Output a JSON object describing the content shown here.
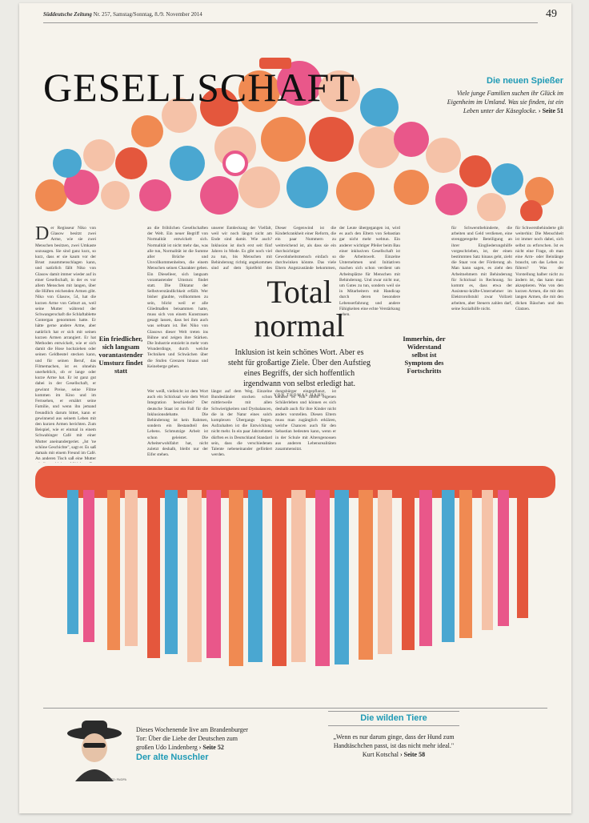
{
  "masthead": {
    "paper_name": "Süddeutsche Zeitung",
    "issue": "Nr. 257, Samstag/Sonntag, 8./9. November 2014",
    "page_number": "49"
  },
  "section_title": "GESELLSCHAFT",
  "teaser_top": {
    "title": "Die neuen Spießer",
    "text": "Viele junge Familien suchen ihr Glück im Eigenheim im Umland. Was sie finden, ist ein Leben unter der Käseglocke.",
    "ref": "Seite 51"
  },
  "article": {
    "headline": "Total normal",
    "deck": "Inklusion ist kein schönes Wort. Aber es steht für großartige Ziele. Über den Aufstieg eines Begriffs, der sich hoffentlich irgendwann von selbst erledigt hat.",
    "byline": "VON THOMAS HAHN",
    "dropcap": "D",
    "col1": "er Regisseur Niko von Glasow besitzt zwei Arme, wie sie zwei Menschen besitzen, zwei Umkaste sozusagen. Sie sind ganz kurz, so kurz, dass er sie kaum vor der Brust zusammenschlagen kann, und natürlich fällt Niko von Glasow damit immer wieder auf in einer Gesellschaft, in der es vor allem Menschen mit langen, über die Hüften reichenden Armen gibt. Niko von Glasow, 54, hat die kurzen Arme von Geburt an, weil seine Mutter während der Schwangerschaft die Schlaftablette Contergan genommen hatte. Er hätte gerne andere Arme, aber natürlich hat er sich mit seinen kurzen Armen arrangiert. Er hat Methoden entwickelt, wie er sich damit die Hose hochziehen oder seinen Geldbeutel stecken kann, und für seinen Beruf, das Filmemachen, ist es ohnehin unerheblich, ob er lange oder kurze Arme hat. Er ist ganz gut dabei in der Gesellschaft, er gewinnt Preise, seine Filme kommen im Kino und im Fernsehen, er ernährt seine Familie, und wenn ihn jemand freundlich darum bittet, kann er gewinnend aus seinem Leben mit den kurzen Armen berichten. Zum Beispiel, wie er einmal in einem Schwabinger Café mit einer Mutter aneinandergeriet. „Ist 'ne schöne Geschichte\", sagt er. Es saß damals mit einem Freund im Café. An anderen Tisch saß eine Mutter mit ihrem kleinen Mädchen. Das Mädchen stand auf, es ging im Lokal herum. Es blieb vor Niko von Glasow stehen, betrachtete seine Arme und sagte mit einer lauten, fast kreischenden Stimme: „Warum hast du denn so kleine Arme?\"",
    "col2": "an die fröhlichen Gesellschaften der Welt. Ein neuer Begriff von Normalität entwickelt sich. Normalität ist nicht mehr das, was alle tun, Normalität ist die Summe aller Brüche und Unvollkommenheiten, die einem Menschen seinen Charakter geben. Ein Dieselleer, sich langsam vorantastender Umsturz findet statt. Die Diktatur der Selbstverständlichkeit erfällt. Wer bisher glaubte, vollkommen zu sein, blickt weil er alle Gliedmaßen beisammen hatte, muss sich von einem Kunstrasen gesagt lassen, dass bei ihm auch was seltsam ist. Bei Niko von Glasows dieser Welt treten ins Bühne und zeigen ihre Stärken. Die Industrie entzieht in mehr vom Wunderdinge, durch welche Techniken und Schwächen über die Stufen Grenzen hinaus und Keineberge gehen.",
    "col3": "unserer Entdeckung der Vielfalt, weil wir noch längst nicht am Ende sind damit. Wie auch? Inklusion ist doch erst seit fünf Jahren in Mode. Es gibt noch viel zu tun, bis Menschen mit Behinderung richtig angekommen sind auf dem Spielfeld des gesellschaftlichen Lebens. Wenn man den öffentlichen Debatten glauben darf, sind dabei die Schulen die größten Baustellen. In der Tat ist es ein ziemlicher Akt, das ordentlich gegliederte deutsche Schulsystem nach und nach auseinanderzubauen und so wieder zusammenzusetzen, dass neue Chancen für alle entstehen.",
    "col4": "Dieser Gegenwind ist die Kinderkrankheit einer Reform, die ein paar Nummern zu weitreichend ist, als dass sie ein durchsichtiger Gewohnheitsmensch einfach so durchwinken könnte. Das viele Eltern Angstzustände bekommen, wenn sie hören, dass ihr lähigbereicherter, diesbemerktes und Mandolinen-Unterricht groß geworden Sebastian plötzlich in die Klasse mit einem Autisten gehen soll, ist zwar nicht schön. Zumal sie die Debatte viel zu emotional führen.",
    "col5": "der Leute übergegangen ist, wird es auch den Eltern von Sebastian gar nicht mehr wehtun. Ein anderer wichtiger Pfeiler beim Bau einer inklusiven Gesellschaft ist die Arbeitswelt. Einzelne Unternehmen und Initiativen machen sich schon verdient um Arbeitsplätze für Menschen mit Behinderung. Und zwar nicht nur, um Gutes zu tun, sondern weil sie in Mitarbeitern mit Handicap durch deren besondere Lebenserfahrung und andere Fähigkeiten eine echte Verstärkung sehen.",
    "col6": "für Schwerstbehinderte, die arbeiten und Geld verdienen, eine strenggeregelte Beteiligung an ihrer Eingliederungshilfe vorgeschrieben, ist, der einen bestimmten Satz hinaus geht, zieht die Staat von der Förderung ab. Man kann sagen, es zieht den Arbeitnehmern mit Behinderung für Schicksal in Rechnung. So kommt es, dass etwa der Assistenz-kräfte-Unternehmer im Elektrorollstuhl zwar Vollzeit arbeiten, aber Steuern zahlen darf, seine Sozialhilfe nicht.",
    "pull1": "Ein friedlicher, sich langsam vorantastender Umsturz findet statt",
    "pull2": "Immerhin, der Widerstand selbst ist Symptom des Fortschritts",
    "col7": "längst auf dem Weg. Einzelne Bundesländer stocken schon mittlerweile mit allen Schwierigkeiten und Dysbalancen, die in der Natur eines solch komplexen Übergangs liegen. Aufzuhalten ist die Entwicklung nicht mehr. In ein paar Jahrzehnten dürften es in Deutschland Standard sein, dass die verschiedenen Talente nebeneinander gefördert werden.",
    "col8": "dungsbürger eingepflanzt, ist kennen es von ihrem eigenen Schülerleben und können es sich deshalb auch für ihre Kinder nicht anders vorstellen. Diesen Eltern muss man zugänglich erklären, welche Chancen auch für den Sebastian bedeuten kann, wenn er in der Schule mit Altersgenossen aus anderen Lebensrealitäten zusammensitzt.",
    "col9": "Wer weiß, vielleicht ist dem Wort auch ein Schicksal wie dem Wort Integration beschieden? Der deutsche Staat ist ein Fall für die Inklusionsdebatte. Die Behinderung ist kein Rahmen, sondern ein Bestandteil des Lebens. Schmutzige Arbeit ist schon geleistet. Die Arbeiterwohlfahrt hat, nicht zuletzt deshalb, bleibt nur der Eifer stehen.",
    "col10": "für Schwerstbehinderte gilt weiterhin: Die Menschheit ist immer noch dabei, sich selbst zu erforschen. Ist es nicht eine Frage, ob man eine Arm- oder Beinlänge braucht, um das Leben zu führen? Was der Vorstellung halber nicht zu ändern ist, das kann man akzeptieren. Was von den kurzen Armen, die mit den langen Armen, die mit den dicken Bäuchen und den Glatzen."
  },
  "promo_bottom_left": {
    "text": "Dieses Wochenende live am Brandenburger Tor: Über die Liebe der Deutschen zum großen Udo Lindenberg",
    "ref": "Seite 52",
    "title": "Der alte Nuschler",
    "photo_credit": "FOTO: PA/DPA"
  },
  "promo_bottom_right": {
    "title": "Die wilden Tiere",
    "quote": "„Wenn es nur darum ginge, dass der Hund zum Handtäschchen passt, ist das nicht mehr ideal.\" Kurt Kotschal",
    "ref": "Seite 58"
  },
  "colors": {
    "accent_blue": "#1f9ab5",
    "illustration_red": "#e4573d",
    "illustration_pink": "#e9578a",
    "illustration_orange": "#f08a52",
    "illustration_blue": "#4aa7d1"
  }
}
